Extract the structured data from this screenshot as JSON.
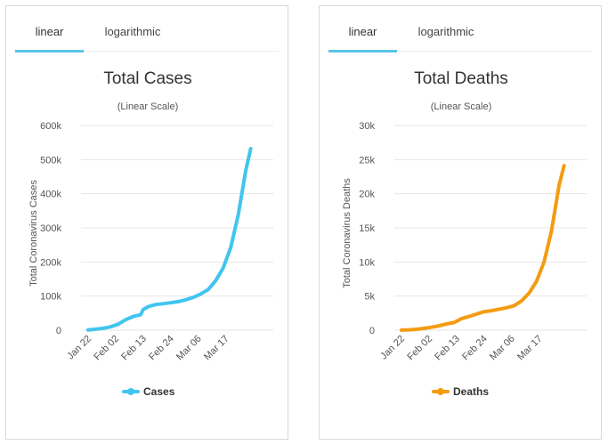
{
  "tabs": [
    {
      "label": "linear",
      "active": true
    },
    {
      "label": "logarithmic",
      "active": false
    }
  ],
  "colors": {
    "tab_underline": "#5ac3e8"
  },
  "chart_data": [
    {
      "type": "line",
      "title": "Total Cases",
      "subtitle": "(Linear Scale)",
      "ylabel": "Total Coronavirus Cases",
      "xlabel": "",
      "ylim": [
        0,
        600000
      ],
      "yticks": [
        0,
        100000,
        200000,
        300000,
        400000,
        500000,
        600000
      ],
      "ytick_labels": [
        "0",
        "100k",
        "200k",
        "300k",
        "400k",
        "500k",
        "600k"
      ],
      "xticks": [
        "Jan 22",
        "Feb 02",
        "Feb 13",
        "Feb 24",
        "Mar 06",
        "Mar 17"
      ],
      "grid": true,
      "legend": "bottom",
      "series": [
        {
          "name": "Cases",
          "color": "#41c5f0",
          "x": [
            "Jan 22",
            "Jan 25",
            "Jan 28",
            "Jan 31",
            "Feb 03",
            "Feb 06",
            "Feb 09",
            "Feb 12",
            "Feb 13",
            "Feb 15",
            "Feb 18",
            "Feb 21",
            "Feb 24",
            "Feb 27",
            "Mar 01",
            "Mar 04",
            "Mar 07",
            "Mar 10",
            "Mar 13",
            "Mar 16",
            "Mar 19",
            "Mar 22",
            "Mar 25",
            "Mar 27"
          ],
          "values": [
            555,
            2900,
            5600,
            9900,
            17400,
            30800,
            40200,
            45200,
            60400,
            69000,
            75200,
            77800,
            80300,
            83800,
            89300,
            95900,
            105800,
            119100,
            145300,
            182400,
            242700,
            337600,
            467000,
            532000
          ]
        }
      ]
    },
    {
      "type": "line",
      "title": "Total Deaths",
      "subtitle": "(Linear Scale)",
      "ylabel": "Total Coronavirus Deaths",
      "xlabel": "",
      "ylim": [
        0,
        30000
      ],
      "yticks": [
        0,
        5000,
        10000,
        15000,
        20000,
        25000,
        30000
      ],
      "ytick_labels": [
        "0",
        "5k",
        "10k",
        "15k",
        "20k",
        "25k",
        "30k"
      ],
      "xticks": [
        "Jan 22",
        "Feb 02",
        "Feb 13",
        "Feb 24",
        "Mar 06",
        "Mar 17"
      ],
      "grid": true,
      "legend": "bottom",
      "series": [
        {
          "name": "Deaths",
          "color": "#f39c12",
          "x": [
            "Jan 22",
            "Jan 25",
            "Jan 28",
            "Jan 31",
            "Feb 03",
            "Feb 06",
            "Feb 09",
            "Feb 12",
            "Feb 15",
            "Feb 18",
            "Feb 21",
            "Feb 24",
            "Feb 27",
            "Mar 01",
            "Mar 04",
            "Mar 07",
            "Mar 10",
            "Mar 13",
            "Mar 16",
            "Mar 19",
            "Mar 22",
            "Mar 25",
            "Mar 27"
          ],
          "values": [
            17,
            56,
            133,
            259,
            427,
            637,
            910,
            1120,
            1680,
            2010,
            2360,
            2710,
            2860,
            3080,
            3290,
            3580,
            4290,
            5430,
            7160,
            10000,
            14600,
            21200,
            24100
          ]
        }
      ]
    }
  ]
}
